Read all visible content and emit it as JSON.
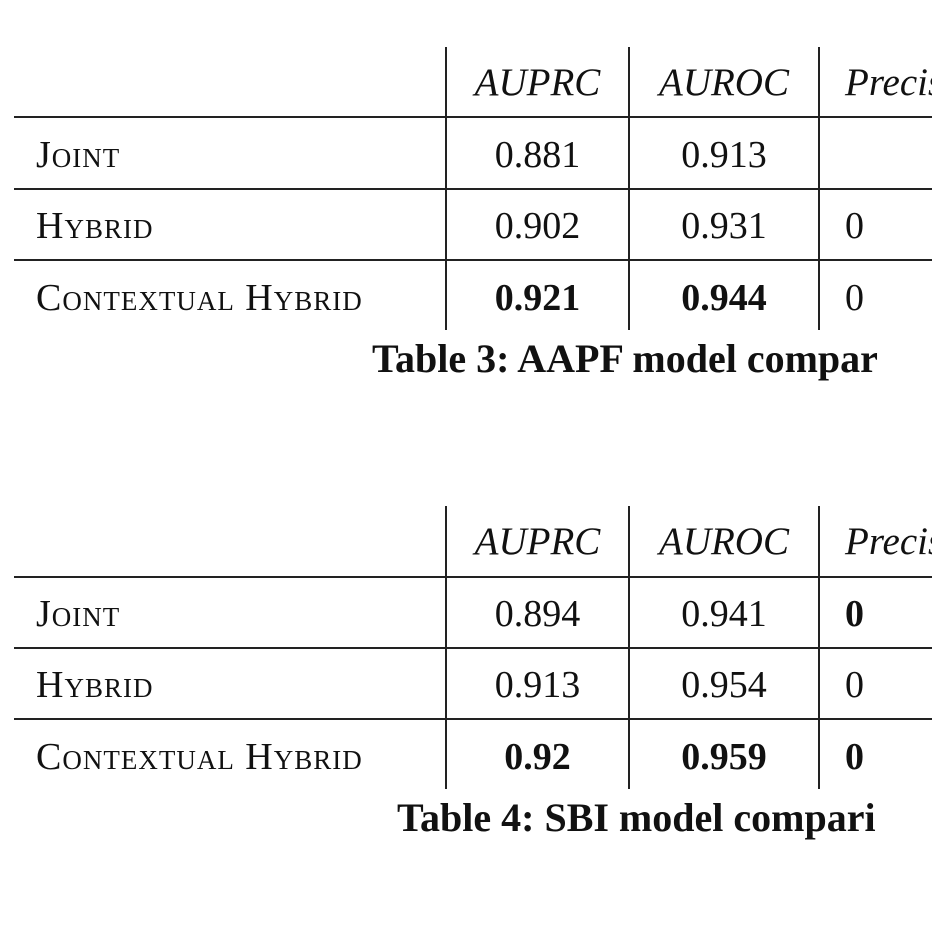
{
  "tables": [
    {
      "header": {
        "name": "",
        "auprc": "AUPRC",
        "auroc": "AUROC",
        "precision": "Precis"
      },
      "rows": [
        {
          "name": "Joint",
          "auprc": "0.881",
          "auroc": "0.913",
          "precision": ""
        },
        {
          "name": "Hybrid",
          "auprc": "0.902",
          "auroc": "0.931",
          "precision": "0"
        },
        {
          "name": "Contextual Hybrid",
          "auprc": "0.921",
          "auroc": "0.944",
          "precision": "0"
        }
      ],
      "caption": "Table 3: AAPF model compar"
    },
    {
      "header": {
        "name": "",
        "auprc": "AUPRC",
        "auroc": "AUROC",
        "precision": "Precis"
      },
      "rows": [
        {
          "name": "Joint",
          "auprc": "0.894",
          "auroc": "0.941",
          "precision": "0"
        },
        {
          "name": "Hybrid",
          "auprc": "0.913",
          "auroc": "0.954",
          "precision": "0"
        },
        {
          "name": "Contextual Hybrid",
          "auprc": "0.92",
          "auroc": "0.959",
          "precision": "0"
        }
      ],
      "caption": "Table 4: SBI model compari"
    }
  ]
}
